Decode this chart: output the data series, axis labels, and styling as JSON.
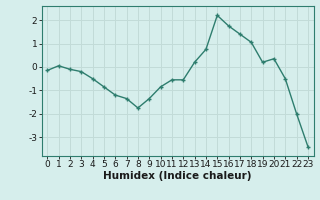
{
  "x": [
    0,
    1,
    2,
    3,
    4,
    5,
    6,
    7,
    8,
    9,
    10,
    11,
    12,
    13,
    14,
    15,
    16,
    17,
    18,
    19,
    20,
    21,
    22,
    23
  ],
  "y": [
    -0.15,
    0.05,
    -0.1,
    -0.2,
    -0.5,
    -0.85,
    -1.2,
    -1.35,
    -1.75,
    -1.35,
    -0.85,
    -0.55,
    -0.55,
    0.2,
    0.75,
    2.2,
    1.75,
    1.4,
    1.05,
    0.2,
    0.35,
    -0.5,
    -2.0,
    -3.4
  ],
  "line_color": "#2e7d6e",
  "marker": "+",
  "marker_size": 3,
  "xlabel": "Humidex (Indice chaleur)",
  "xlim": [
    -0.5,
    23.5
  ],
  "ylim": [
    -3.8,
    2.6
  ],
  "yticks": [
    -3,
    -2,
    -1,
    0,
    1,
    2
  ],
  "xticks": [
    0,
    1,
    2,
    3,
    4,
    5,
    6,
    7,
    8,
    9,
    10,
    11,
    12,
    13,
    14,
    15,
    16,
    17,
    18,
    19,
    20,
    21,
    22,
    23
  ],
  "bg_color": "#d6eeec",
  "grid_color": "#c2dbd8",
  "line_width": 1.0,
  "tick_fontsize": 6.5,
  "xlabel_fontsize": 7.5
}
